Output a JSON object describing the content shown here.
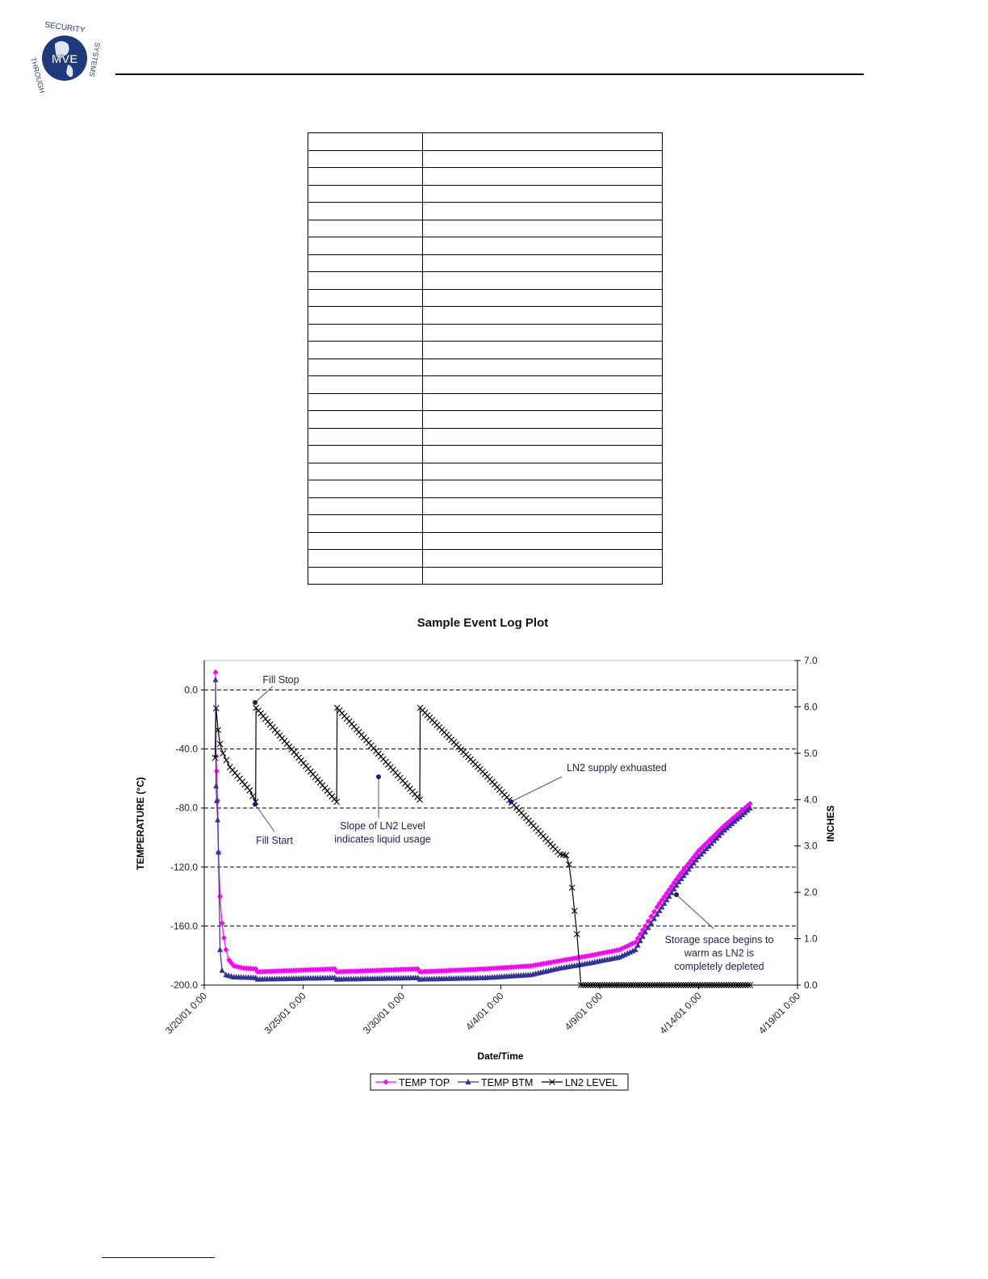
{
  "logo": {
    "text_top": "SECURITY",
    "text_left": "THROUGH",
    "text_right": "SYSTEMS",
    "center": "MVE"
  },
  "chart_data": {
    "type": "line",
    "title": "Sample Event Log Plot",
    "xlabel": "Date/Time",
    "ylabel": "TEMPERATURE (°C)",
    "y2label": "INCHES",
    "x_unit": "days since 3/20/01 0:00",
    "xlim": [
      0,
      30
    ],
    "ylim": [
      -200,
      20
    ],
    "y2lim": [
      0,
      7
    ],
    "x_ticks": [
      0,
      5,
      10,
      15,
      20,
      25,
      30
    ],
    "x_tick_labels": [
      "3/20/01 0:00",
      "3/25/01 0:00",
      "3/30/01 0:00",
      "4/4/01 0:00",
      "4/9/01 0:00",
      "4/14/01 0:00",
      "4/19/01 0:00"
    ],
    "y_ticks": [
      0,
      -40,
      -80,
      -120,
      -160,
      -200
    ],
    "y_tick_labels": [
      "0.0",
      "-40.0",
      "-80.0",
      "-120.0",
      "-160.0",
      "-200.0"
    ],
    "y2_ticks": [
      0,
      1,
      2,
      3,
      4,
      5,
      6,
      7
    ],
    "y2_tick_labels": [
      "0.0",
      "1.0",
      "2.0",
      "3.0",
      "4.0",
      "5.0",
      "6.0",
      "7.0"
    ],
    "grid": "horizontal dashed",
    "legend_position": "bottom",
    "series": [
      {
        "name": "TEMP TOP",
        "axis": "left",
        "color": "#ff00ff",
        "marker": "diamond",
        "points": [
          [
            0.57,
            12
          ],
          [
            0.6,
            -45
          ],
          [
            0.63,
            -55
          ],
          [
            0.68,
            -75
          ],
          [
            0.72,
            -110
          ],
          [
            0.8,
            -140
          ],
          [
            0.9,
            -158
          ],
          [
            1.0,
            -168
          ],
          [
            1.1,
            -176
          ],
          [
            1.25,
            -183
          ],
          [
            1.5,
            -187
          ],
          [
            2.0,
            -188.5
          ],
          [
            2.6,
            -189
          ],
          [
            2.7,
            -191
          ],
          [
            6.6,
            -189
          ],
          [
            6.7,
            -191
          ],
          [
            10.8,
            -189
          ],
          [
            10.9,
            -191
          ],
          [
            14.2,
            -189
          ],
          [
            16.5,
            -187
          ],
          [
            17.8,
            -184
          ],
          [
            18.2,
            -183
          ],
          [
            19.5,
            -180
          ],
          [
            21.0,
            -176
          ],
          [
            21.8,
            -171
          ],
          [
            22.3,
            -160
          ],
          [
            22.9,
            -147
          ],
          [
            24.0,
            -126
          ],
          [
            25.0,
            -109
          ],
          [
            26.3,
            -92
          ],
          [
            27.6,
            -77
          ]
        ]
      },
      {
        "name": "TEMP BTM",
        "axis": "left",
        "color": "#333399",
        "marker": "triangle",
        "points": [
          [
            0.57,
            7
          ],
          [
            0.6,
            -65
          ],
          [
            0.63,
            -75
          ],
          [
            0.68,
            -88
          ],
          [
            0.72,
            -110
          ],
          [
            0.8,
            -176
          ],
          [
            0.9,
            -190
          ],
          [
            1.1,
            -193
          ],
          [
            1.5,
            -194.5
          ],
          [
            2.6,
            -195
          ],
          [
            2.7,
            -196
          ],
          [
            6.6,
            -195
          ],
          [
            6.7,
            -196
          ],
          [
            10.8,
            -195
          ],
          [
            10.9,
            -196
          ],
          [
            14.2,
            -195
          ],
          [
            16.5,
            -193
          ],
          [
            17.8,
            -189
          ],
          [
            18.2,
            -188
          ],
          [
            19.5,
            -185
          ],
          [
            21.0,
            -181
          ],
          [
            21.8,
            -176
          ],
          [
            22.3,
            -164
          ],
          [
            22.9,
            -152
          ],
          [
            24.0,
            -130
          ],
          [
            25.0,
            -113
          ],
          [
            26.3,
            -95
          ],
          [
            27.6,
            -80
          ]
        ]
      },
      {
        "name": "LN2 LEVEL",
        "axis": "right",
        "color": "#000000",
        "marker": "x",
        "points": [
          [
            0.55,
            4.9
          ],
          [
            0.6,
            5.97
          ],
          [
            0.7,
            5.5
          ],
          [
            0.8,
            5.2
          ],
          [
            0.95,
            5.0
          ],
          [
            1.3,
            4.7
          ],
          [
            1.8,
            4.45
          ],
          [
            2.3,
            4.2
          ],
          [
            2.6,
            3.95
          ],
          [
            2.62,
            5.98
          ],
          [
            6.7,
            3.95
          ],
          [
            6.72,
            5.98
          ],
          [
            10.9,
            4.0
          ],
          [
            10.92,
            5.98
          ],
          [
            14.2,
            4.55
          ],
          [
            18.0,
            2.82
          ],
          [
            18.3,
            2.8
          ],
          [
            18.45,
            2.6
          ],
          [
            18.6,
            2.1
          ],
          [
            18.85,
            1.1
          ],
          [
            19.05,
            0.0
          ],
          [
            27.6,
            0.0
          ]
        ]
      }
    ],
    "annotations": [
      {
        "text": [
          "Fill Stop"
        ],
        "at": [
          2.6,
          6.0
        ],
        "axis": "right"
      },
      {
        "text": [
          "Fill Start"
        ],
        "at": [
          2.6,
          3.95
        ],
        "axis": "right"
      },
      {
        "text": [
          "Slope of LN2 Level",
          "indicates liquid usage"
        ],
        "at": [
          8.8,
          4.5
        ],
        "axis": "right"
      },
      {
        "text": [
          "LN2 supply exhuasted"
        ],
        "at": [
          15.5,
          3.95
        ],
        "axis": "right"
      },
      {
        "text": [
          "Storage space begins to",
          "warm as LN2 is",
          "completely depleted"
        ],
        "at": [
          23.8,
          -148
        ],
        "axis": "left"
      }
    ]
  }
}
